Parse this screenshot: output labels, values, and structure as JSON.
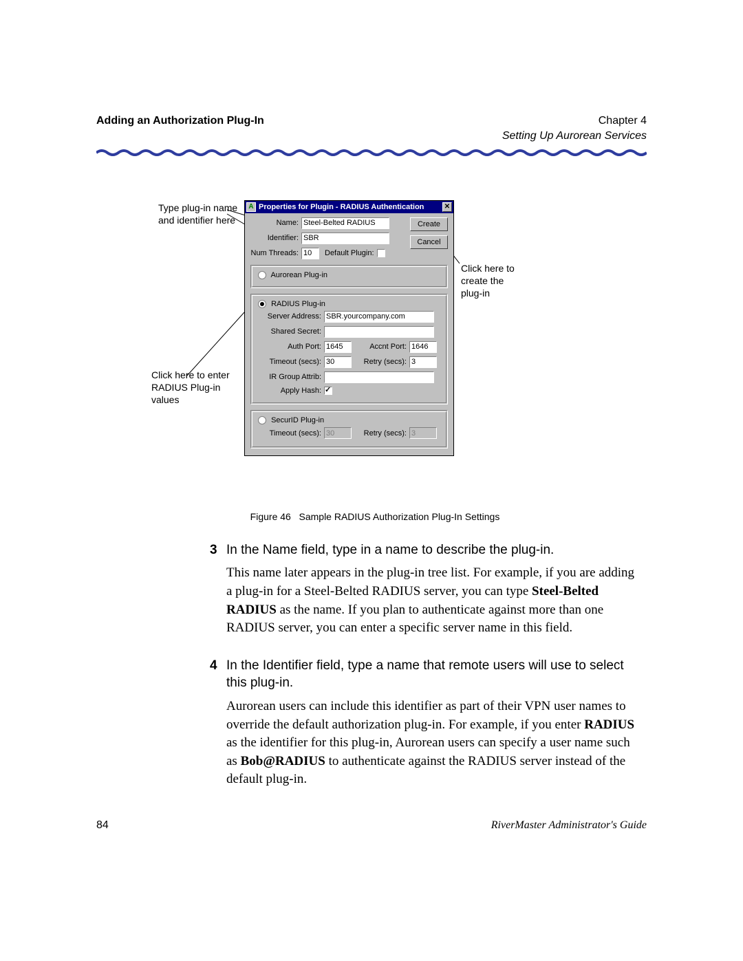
{
  "header": {
    "left": "Adding an Authorization Plug-In",
    "chapter": "Chapter 4",
    "subtitle": "Setting Up Aurorean Services"
  },
  "divider": {
    "color": "#2e3c9e"
  },
  "callouts": {
    "topleft_l1": "Type plug-in name",
    "topleft_l2": "and identifier here",
    "right_l1": "Click here to",
    "right_l2": "create the",
    "right_l3": "plug-in",
    "botleft_l1": "Click here to enter",
    "botleft_l2": "RADIUS Plug-in",
    "botleft_l3": "values"
  },
  "dialog": {
    "title": "Properties for Plugin - RADIUS Authentication",
    "buttons": {
      "create": "Create",
      "cancel": "Cancel"
    },
    "labels": {
      "name": "Name:",
      "identifier": "Identifier:",
      "numthreads": "Num Threads:",
      "defaultplugin": "Default Plugin:",
      "aurorean": "Aurorean Plug-in",
      "radius": "RADIUS Plug-in",
      "server": "Server Address:",
      "secret": "Shared Secret:",
      "auth": "Auth Port:",
      "accnt": "Accnt Port:",
      "timeout": "Timeout (secs):",
      "retry": "Retry (secs):",
      "irgroup": "IR Group Attrib:",
      "applyhash": "Apply Hash:",
      "securid": "SecurID Plug-in"
    },
    "values": {
      "name": "Steel-Belted RADIUS",
      "identifier": "SBR",
      "numthreads": "10",
      "server": "SBR.yourcompany.com",
      "secret": "",
      "auth": "1645",
      "accnt": "1646",
      "timeout": "30",
      "retry": "3",
      "irgroup": "",
      "sec_timeout": "30",
      "sec_retry": "3"
    }
  },
  "figure_caption_prefix": "Figure 46",
  "figure_caption": "Sample RADIUS Authorization Plug-In Settings",
  "steps": {
    "s3": {
      "num": "3",
      "title": "In the Name field, type in a name to describe the plug-in.",
      "para": "This name later appears in the plug-in tree list. For example, if you are adding a plug-in for a Steel-Belted RADIUS server, you can type <b>Steel-Belted RADIUS</b> as the name. If you plan to authenticate against more than one RADIUS server, you can enter a specific server name in this field."
    },
    "s4": {
      "num": "4",
      "title": "In the Identifier field, type a name that remote users will use to select this plug-in.",
      "para": "Aurorean users can include this identifier as part of their VPN user names to override the default authorization plug-in. For example, if you enter <b>RADIUS</b> as the identifier for this plug-in, Aurorean users can specify a user name such as <b>Bob@RADIUS</b> to authenticate against the RADIUS server instead of the default plug-in."
    }
  },
  "footer": {
    "page": "84",
    "guide": "RiverMaster Administrator's Guide"
  }
}
